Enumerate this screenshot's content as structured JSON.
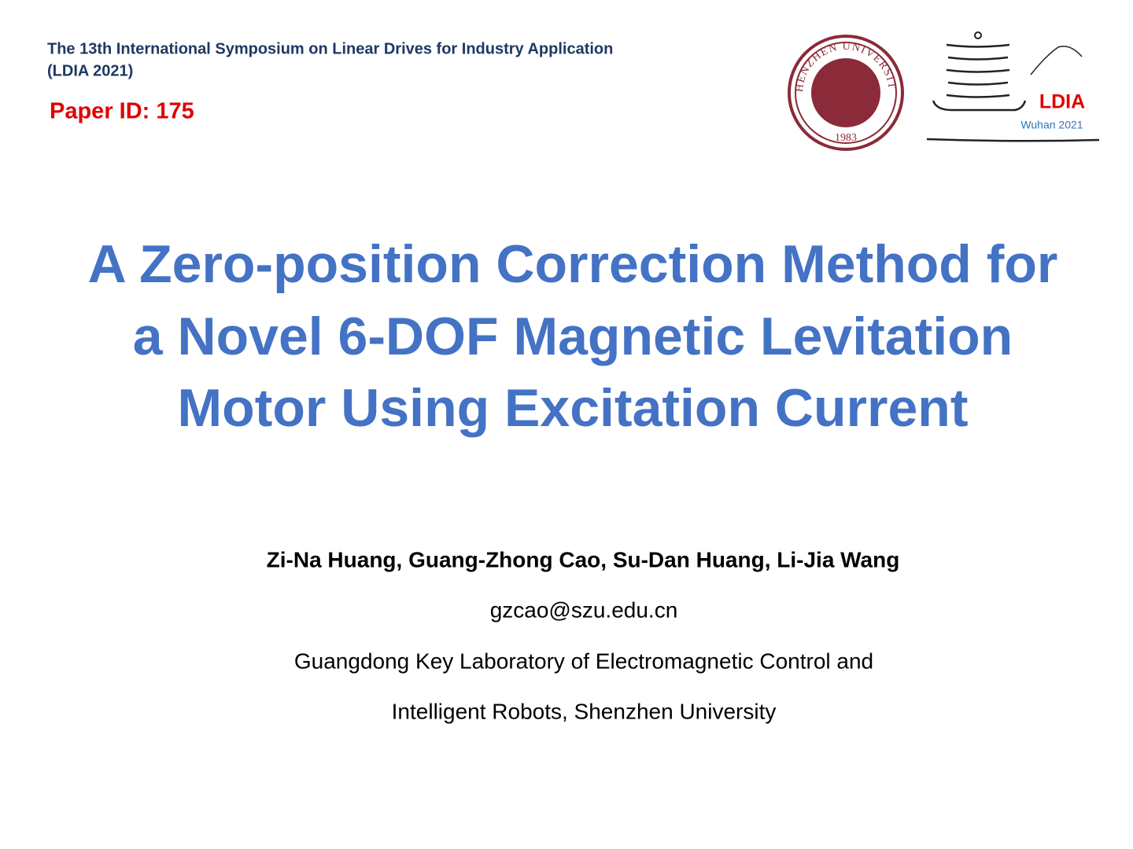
{
  "header": {
    "conference": [
      "The 13th International Symposium on Linear Drives for Industry Application",
      "(LDIA 2021)"
    ],
    "paper_id": "Paper ID: 175"
  },
  "logos": {
    "university": {
      "name": "SHENZHEN UNIVERSITY",
      "year": "1983"
    },
    "conference": {
      "name": "LDIA",
      "place": "Wuhan 2021"
    }
  },
  "title": [
    "A Zero-position Correction Method for",
    "a Novel 6-DOF Magnetic Levitation",
    "Motor Using Excitation Current"
  ],
  "authors": "Zi-Na Huang, Guang-Zhong Cao, Su-Dan Huang, Li-Jia Wang",
  "email": "gzcao@szu.edu.cn",
  "affiliation": [
    "Guangdong Key Laboratory of Electromagnetic Control and",
    "Intelligent Robots, Shenzhen University"
  ]
}
